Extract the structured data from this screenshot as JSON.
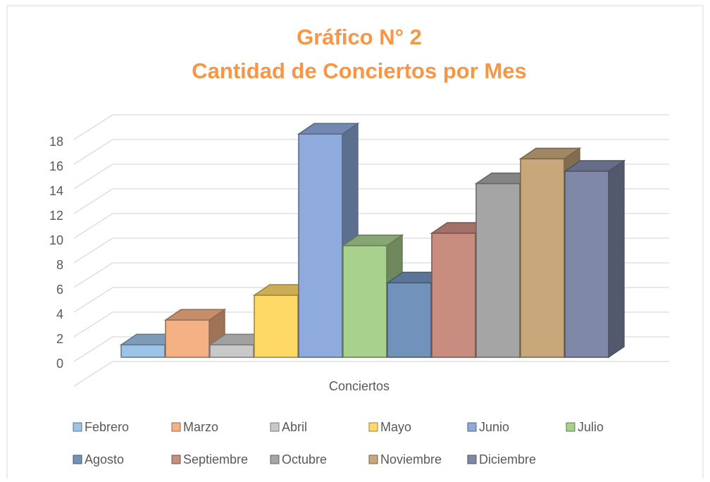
{
  "chart_data": {
    "type": "bar3d",
    "title": "Gráfico N° 2",
    "subtitle": "Cantidad de Conciertos por Mes",
    "categories": [
      "Conciertos"
    ],
    "series": [
      {
        "name": "Febrero",
        "color": "#9dc3e6",
        "values": [
          1
        ]
      },
      {
        "name": "Marzo",
        "color": "#f4b183",
        "values": [
          3
        ]
      },
      {
        "name": "Abril",
        "color": "#c9c9c9",
        "values": [
          1
        ]
      },
      {
        "name": "Mayo",
        "color": "#ffd966",
        "values": [
          5
        ]
      },
      {
        "name": "Junio",
        "color": "#8faadc",
        "values": [
          18
        ]
      },
      {
        "name": "Julio",
        "color": "#a9d18e",
        "values": [
          9
        ]
      },
      {
        "name": "Agosto",
        "color": "#7192bb",
        "values": [
          6
        ]
      },
      {
        "name": "Septiembre",
        "color": "#c98d7f",
        "values": [
          10
        ]
      },
      {
        "name": "Octubre",
        "color": "#a5a5a5",
        "values": [
          14
        ]
      },
      {
        "name": "Noviembre",
        "color": "#c8a87a",
        "values": [
          16
        ]
      },
      {
        "name": "Diciembre",
        "color": "#8088a8",
        "values": [
          15
        ]
      }
    ],
    "ylim": [
      0,
      20
    ],
    "yticks": [
      0,
      2,
      4,
      6,
      8,
      10,
      12,
      14,
      16,
      18
    ],
    "grid": true,
    "legend": "bottom"
  }
}
